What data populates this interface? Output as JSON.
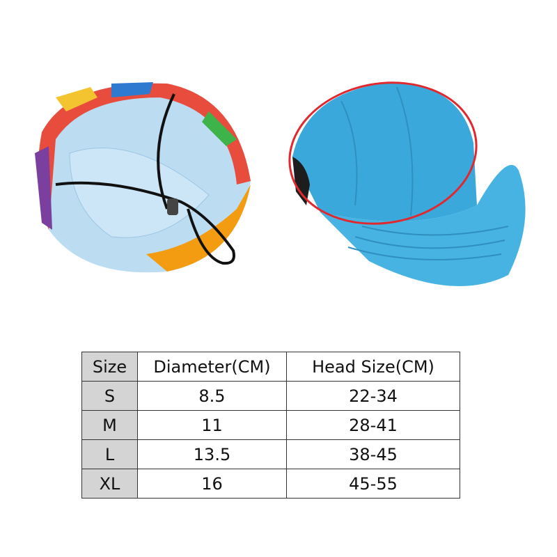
{
  "product": {
    "colors": {
      "cap_blue": "#3ba8dc",
      "lining_blue": "#bcdcf2",
      "highlight_circle": "#e0282e",
      "size_column_bg": "#d4d4d4"
    }
  },
  "size_table": {
    "headers": [
      "Size",
      "Diameter(CM)",
      "Head Size(CM)"
    ],
    "rows": [
      [
        "S",
        "8.5",
        "22-34"
      ],
      [
        "M",
        "11",
        "28-41"
      ],
      [
        "L",
        "13.5",
        "38-45"
      ],
      [
        "XL",
        "16",
        "45-55"
      ]
    ]
  }
}
